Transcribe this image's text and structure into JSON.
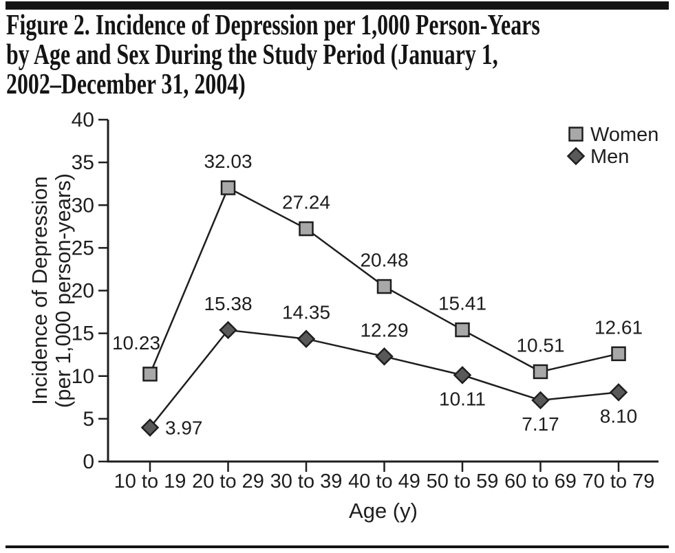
{
  "figure": {
    "title_lines": [
      "Figure 2. Incidence of Depression per 1,000 Person-Years",
      "by Age and Sex During the Study Period (January 1,",
      "2002–December 31, 2004)"
    ]
  },
  "colors": {
    "ink": "#1e1e1e",
    "rule": "#141414",
    "women_fill": "#a8a8a8",
    "men_fill": "#595959"
  },
  "chart_data": {
    "type": "line",
    "categories": [
      "10 to 19",
      "20 to 29",
      "30 to 39",
      "40 to 49",
      "50 to 59",
      "60 to 69",
      "70 to 79"
    ],
    "series": [
      {
        "name": "Women",
        "marker": "square",
        "fill": "#a8a8a8",
        "values": [
          10.23,
          32.03,
          27.24,
          20.48,
          15.41,
          10.51,
          12.61
        ],
        "label_positions": [
          "above-left",
          "above",
          "above",
          "above",
          "above",
          "above",
          "above"
        ]
      },
      {
        "name": "Men",
        "marker": "diamond",
        "fill": "#595959",
        "values": [
          3.97,
          15.38,
          14.35,
          12.29,
          10.11,
          7.17,
          8.1
        ],
        "label_positions": [
          "right",
          "above",
          "above",
          "above",
          "below",
          "below",
          "below"
        ]
      }
    ],
    "xlabel": "Age (y)",
    "ylabel_lines": [
      "Incidence of Depression",
      "(per 1,000 person-years)"
    ],
    "ylim": [
      0,
      40
    ],
    "ytick_step": 5,
    "yticks": [
      0,
      5,
      10,
      15,
      20,
      25,
      30,
      35,
      40
    ],
    "grid": false,
    "legend_position": "top-right"
  }
}
